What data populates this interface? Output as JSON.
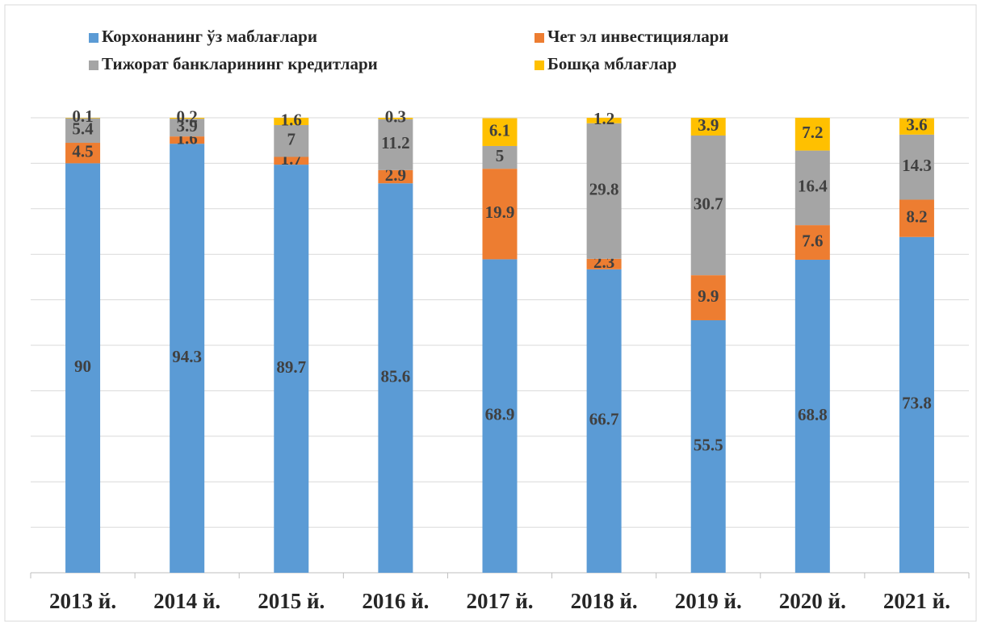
{
  "chart_data": {
    "type": "stacked_bar",
    "categories": [
      "2013 й.",
      "2014 й.",
      "2015 й.",
      "2016 й.",
      "2017 й.",
      "2018 й.",
      "2019 й.",
      "2020 й.",
      "2021 й."
    ],
    "series": [
      {
        "name": "Корхонанинг ўз маблағлари",
        "color": "#5b9bd5",
        "values": [
          90,
          94.3,
          89.7,
          85.6,
          68.9,
          66.7,
          55.5,
          68.8,
          73.8
        ]
      },
      {
        "name": "Чет эл инвестициялари",
        "color": "#ed7d31",
        "values": [
          4.5,
          1.6,
          1.7,
          2.9,
          19.9,
          2.3,
          9.9,
          7.6,
          8.2
        ]
      },
      {
        "name": "Тижорат банкларининг кредитлари",
        "color": "#a5a5a5",
        "values": [
          5.4,
          3.9,
          7,
          11.2,
          5,
          29.8,
          30.7,
          16.4,
          14.3
        ]
      },
      {
        "name": "Бошқа мблағлар",
        "color": "#ffc000",
        "values": [
          0.1,
          0.2,
          1.6,
          0.3,
          6.1,
          1.2,
          3.9,
          7.2,
          3.6
        ]
      }
    ],
    "ylim": [
      0,
      100
    ],
    "yticks": [
      0,
      10,
      20,
      30,
      40,
      50,
      60,
      70,
      80,
      90,
      100
    ],
    "grid": true
  }
}
